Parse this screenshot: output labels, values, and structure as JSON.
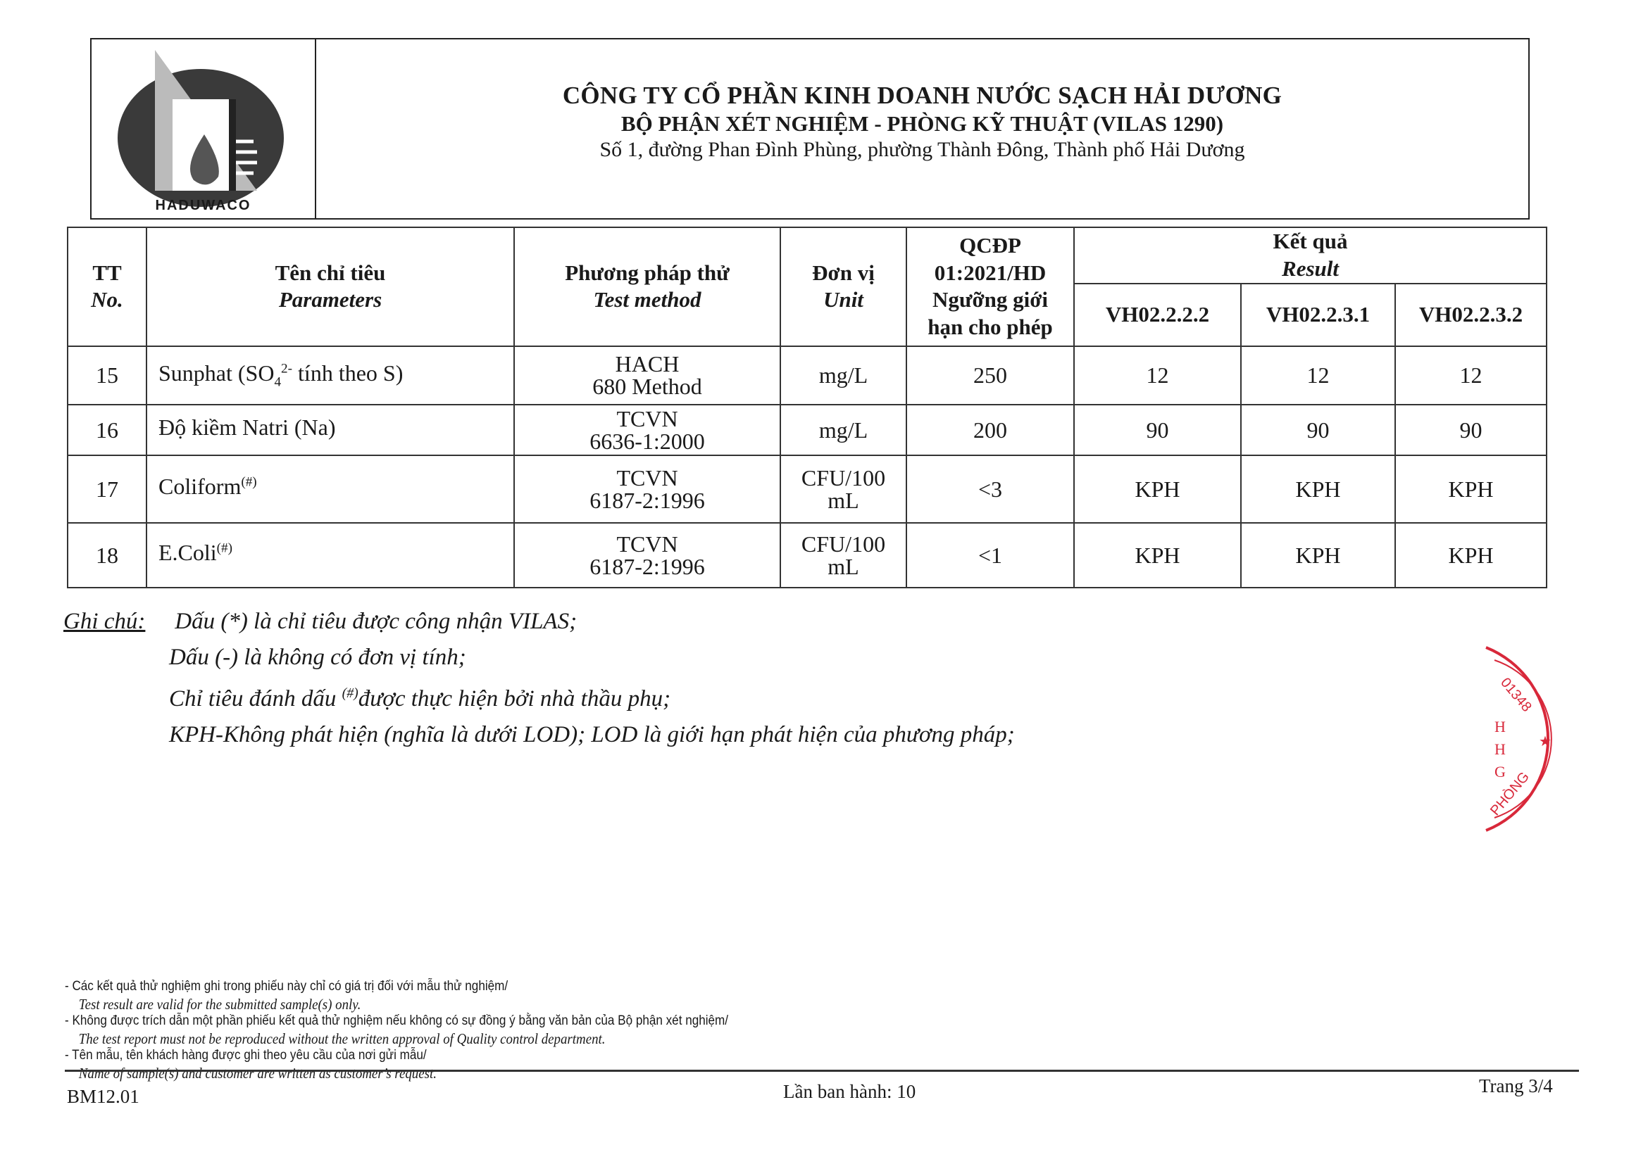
{
  "header": {
    "logo_text": "HADUWACO",
    "company": "CÔNG TY CỔ PHẦN KINH DOANH NƯỚC SẠCH HẢI DƯƠNG",
    "department": "BỘ PHẬN XÉT NGHIỆM - PHÒNG KỸ THUẬT (VILAS 1290)",
    "address": "Số 1, đường Phan Đình Phùng, phường Thành Đông, Thành phố Hải Dương"
  },
  "table": {
    "headers": {
      "no_vi": "TT",
      "no_en": "No.",
      "param_vi": "Tên chỉ tiêu",
      "param_en": "Parameters",
      "method_vi": "Phương pháp thử",
      "method_en": "Test method",
      "unit_vi": "Đơn vị",
      "unit_en": "Unit",
      "qcdp_1": "QCĐP",
      "qcdp_2": "01:2021/HD",
      "qcdp_3": "Ngưỡng giới",
      "qcdp_4": "hạn cho phép",
      "result_vi": "Kết quả",
      "result_en": "Result",
      "samples": [
        "VH02.2.2.2",
        "VH02.2.3.1",
        "VH02.2.3.2"
      ]
    },
    "rows": [
      {
        "no": "15",
        "param": "Sunphat (SO",
        "param_sub": "4",
        "param_sup": "2-",
        "param_tail": " tính theo S)",
        "method1": "HACH",
        "method2": "680 Method",
        "unit1": "mg/L",
        "unit2": "",
        "limit": "250",
        "results": [
          "12",
          "12",
          "12"
        ]
      },
      {
        "no": "16",
        "param": "Độ kiềm Natri (Na)",
        "param_sub": "",
        "param_sup": "",
        "param_tail": "",
        "method1": "TCVN",
        "method2": "6636-1:2000",
        "unit1": "mg/L",
        "unit2": "",
        "limit": "200",
        "results": [
          "90",
          "90",
          "90"
        ]
      },
      {
        "no": "17",
        "param": "Coliform",
        "param_sub": "",
        "param_sup": "(#)",
        "param_tail": "",
        "method1": "TCVN",
        "method2": "6187-2:1996",
        "unit1": "CFU/100",
        "unit2": "mL",
        "limit": "<3",
        "results": [
          "KPH",
          "KPH",
          "KPH"
        ]
      },
      {
        "no": "18",
        "param": "E.Coli",
        "param_sub": "",
        "param_sup": "(#)",
        "param_tail": "",
        "method1": "TCVN",
        "method2": "6187-2:1996",
        "unit1": "CFU/100",
        "unit2": "mL",
        "limit": "<1",
        "results": [
          "KPH",
          "KPH",
          "KPH"
        ]
      }
    ]
  },
  "notes": {
    "label": "Ghi chú:",
    "lines": [
      "Dấu (*) là chỉ tiêu được công nhận VILAS;",
      "Dấu (-) là không có đơn vị tính;",
      "Chỉ tiêu đánh dấu ",
      "KPH-Không phát hiện (nghĩa là dưới LOD); LOD là giới hạn phát hiện của phương pháp;"
    ],
    "line3_sup": "(#)",
    "line3_tail": "được thực hiện bởi nhà thầu phụ;"
  },
  "footnotes": [
    {
      "vi": "- Các kết quả thử nghiệm ghi trong phiếu này chỉ có giá trị đối với mẫu thử nghiệm/",
      "en": "Test result are valid for the submitted sample(s) only."
    },
    {
      "vi": "- Không được trích dẫn một phần phiếu kết quả thử nghiệm nếu không có sự đồng ý bằng văn bản của Bộ phận xét nghiệm/",
      "en": "The test report must not be reproduced without the written approval of Quality control department."
    },
    {
      "vi": "- Tên mẫu, tên khách hàng được ghi theo yêu cầu của nơi gửi mẫu/",
      "en": "Name of sample(s) and customer are written as customer’s request."
    }
  ],
  "footer": {
    "form_code": "BM12.01",
    "edition": "Lần ban hành: 10",
    "page": "Trang 3/4"
  },
  "stamp": {
    "color": "#d8283a",
    "text": "01348 ★ PHÒNG",
    "inner": "H H G"
  }
}
